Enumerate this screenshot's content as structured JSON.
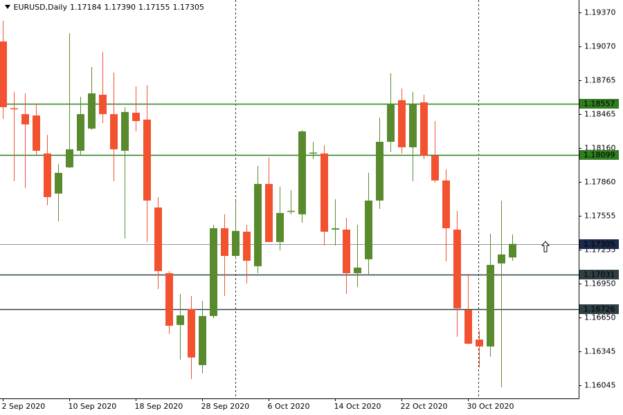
{
  "chart_data": {
    "type": "candlestick",
    "title": "EURUSD,Daily",
    "header_ohlc": [
      "1.17184",
      "1.17390",
      "1.17155",
      "1.17305"
    ],
    "up_color": "#5a8a2e",
    "down_color": "#f25230",
    "categories": [
      "2 Sep 2020",
      null,
      null,
      null,
      null,
      null,
      "10 Sep 2020",
      null,
      null,
      null,
      null,
      null,
      "18 Sep 2020",
      null,
      null,
      null,
      null,
      null,
      "28 Sep 2020",
      null,
      null,
      null,
      null,
      null,
      "6 Oct 2020",
      null,
      null,
      null,
      null,
      null,
      "14 Oct 2020",
      null,
      null,
      null,
      null,
      null,
      "22 Oct 2020",
      null,
      null,
      null,
      null,
      null,
      "30 Oct 2020",
      null,
      null,
      null,
      null
    ],
    "open": [
      1.19111,
      1.18515,
      1.18463,
      1.18451,
      1.18112,
      1.17754,
      1.17988,
      1.18136,
      1.18334,
      1.18636,
      1.18463,
      1.18136,
      1.18475,
      1.18414,
      1.1763,
      1.17044,
      1.16582,
      1.16723,
      1.16224,
      1.16662,
      1.17445,
      1.17198,
      1.17414,
      1.17106,
      1.1784,
      1.17322,
      1.17593,
      1.17569,
      1.18112,
      1.18112,
      1.17433,
      1.17433,
      1.17044,
      1.17168,
      1.17692,
      1.18216,
      1.18587,
      1.18167,
      1.18568,
      1.18093,
      1.17871,
      1.17433,
      1.16717,
      1.16452,
      1.1639,
      1.17131,
      1.17184
    ],
    "high": [
      1.19296,
      1.18661,
      1.18648,
      1.18556,
      1.18278,
      1.18019,
      1.19185,
      1.18617,
      1.18883,
      1.19018,
      1.18833,
      1.18525,
      1.1871,
      1.18722,
      1.17723,
      1.17063,
      1.16859,
      1.16841,
      1.16797,
      1.17476,
      1.17569,
      1.17692,
      1.17476,
      1.18,
      1.18075,
      1.17815,
      1.17785,
      1.18321,
      1.18216,
      1.18186,
      1.17704,
      1.17538,
      1.17476,
      1.17939,
      1.18432,
      1.18827,
      1.18691,
      1.18661,
      1.18636,
      1.18401,
      1.1797,
      1.17599,
      1.17038,
      1.16532,
      1.17396,
      1.17692,
      1.1739
    ],
    "low": [
      1.1842,
      1.17865,
      1.17803,
      1.18093,
      1.17649,
      1.17507,
      1.17982,
      1.18093,
      1.18321,
      1.18383,
      1.17865,
      1.17353,
      1.18309,
      1.17322,
      1.16902,
      1.16501,
      1.16273,
      1.161,
      1.1615,
      1.16643,
      1.16841,
      1.17168,
      1.16952,
      1.17044,
      1.17322,
      1.17248,
      1.17569,
      1.17495,
      1.18062,
      1.17291,
      1.17291,
      1.16859,
      1.16921,
      1.17026,
      1.17618,
      1.18124,
      1.18112,
      1.17865,
      1.18062,
      1.17852,
      1.17149,
      1.16477,
      1.16409,
      1.16205,
      1.16298,
      1.16026,
      1.17155
    ],
    "close": [
      1.18525,
      1.1851,
      1.18371,
      1.18136,
      1.17723,
      1.17939,
      1.18149,
      1.18463,
      1.18648,
      1.18463,
      1.18149,
      1.18482,
      1.18401,
      1.17692,
      1.17063,
      1.16575,
      1.16668,
      1.16292,
      1.16662,
      1.17445,
      1.17198,
      1.17421,
      1.17155,
      1.1784,
      1.17322,
      1.17581,
      1.176,
      1.18309,
      1.1812,
      1.17414,
      1.17445,
      1.17044,
      1.17094,
      1.17692,
      1.18216,
      1.18556,
      1.18167,
      1.18556,
      1.18093,
      1.17871,
      1.17445,
      1.1673,
      1.16415,
      1.1639,
      1.17118,
      1.17211,
      1.17305
    ],
    "ylim": [
      1.15927,
      1.19481
    ],
    "yticks": [
      {
        "value": 1.1937,
        "label": "1.19370"
      },
      {
        "value": 1.1907,
        "label": "1.19070"
      },
      {
        "value": 1.18765,
        "label": "1.18765"
      },
      {
        "value": 1.18465,
        "label": "1.18465"
      },
      {
        "value": 1.1816,
        "label": "1.18160"
      },
      {
        "value": 1.1786,
        "label": "1.17860"
      },
      {
        "value": 1.17555,
        "label": "1.17555"
      },
      {
        "value": 1.17255,
        "label": "1.17255"
      },
      {
        "value": 1.1695,
        "label": "1.16950"
      },
      {
        "value": 1.1665,
        "label": "1.16650"
      },
      {
        "value": 1.16345,
        "label": "1.16345"
      },
      {
        "value": 1.16045,
        "label": "1.16045"
      }
    ],
    "levels": [
      {
        "value": 1.18557,
        "label": "1.18557",
        "color": "#2f7d1f",
        "text_color": "#000000"
      },
      {
        "value": 1.18099,
        "label": "1.18099",
        "color": "#2f7d1f",
        "text_color": "#000000"
      },
      {
        "value": 1.17305,
        "label": "1.17305",
        "color": "#1b2a4a",
        "text_color": "#ffffff"
      },
      {
        "value": 1.17031,
        "label": "1.17031",
        "color": "#2f3f45",
        "text_color": "#ffffff"
      },
      {
        "value": 1.16726,
        "label": "1.16726",
        "color": "#2f3f45",
        "text_color": "#ffffff"
      }
    ]
  }
}
